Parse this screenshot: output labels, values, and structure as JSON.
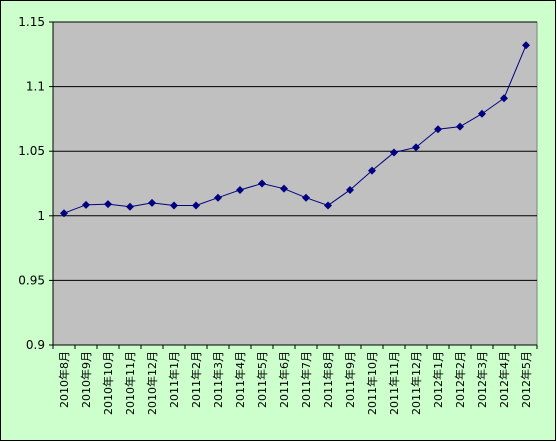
{
  "chart_data": {
    "type": "line",
    "categories": [
      "2010年8月",
      "2010年9月",
      "2010年10月",
      "2010年11月",
      "2010年12月",
      "2011年1月",
      "2011年2月",
      "2011年3月",
      "2011年4月",
      "2011年5月",
      "2011年6月",
      "2011年7月",
      "2011年8月",
      "2011年9月",
      "2011年10月",
      "2011年11月",
      "2011年12月",
      "2012年1月",
      "2012年2月",
      "2012年3月",
      "2012年4月",
      "2012年5月"
    ],
    "values": [
      1.002,
      1.0085,
      1.009,
      1.007,
      1.01,
      1.008,
      1.008,
      1.014,
      1.02,
      1.025,
      1.021,
      1.014,
      1.008,
      1.02,
      1.035,
      1.049,
      1.053,
      1.067,
      1.069,
      1.079,
      1.091,
      1.132
    ],
    "color": "#000080",
    "ylim": [
      0.9,
      1.15
    ],
    "yticks": [
      0.9,
      0.95,
      1,
      1.05,
      1.1,
      1.15
    ],
    "grid": true
  }
}
